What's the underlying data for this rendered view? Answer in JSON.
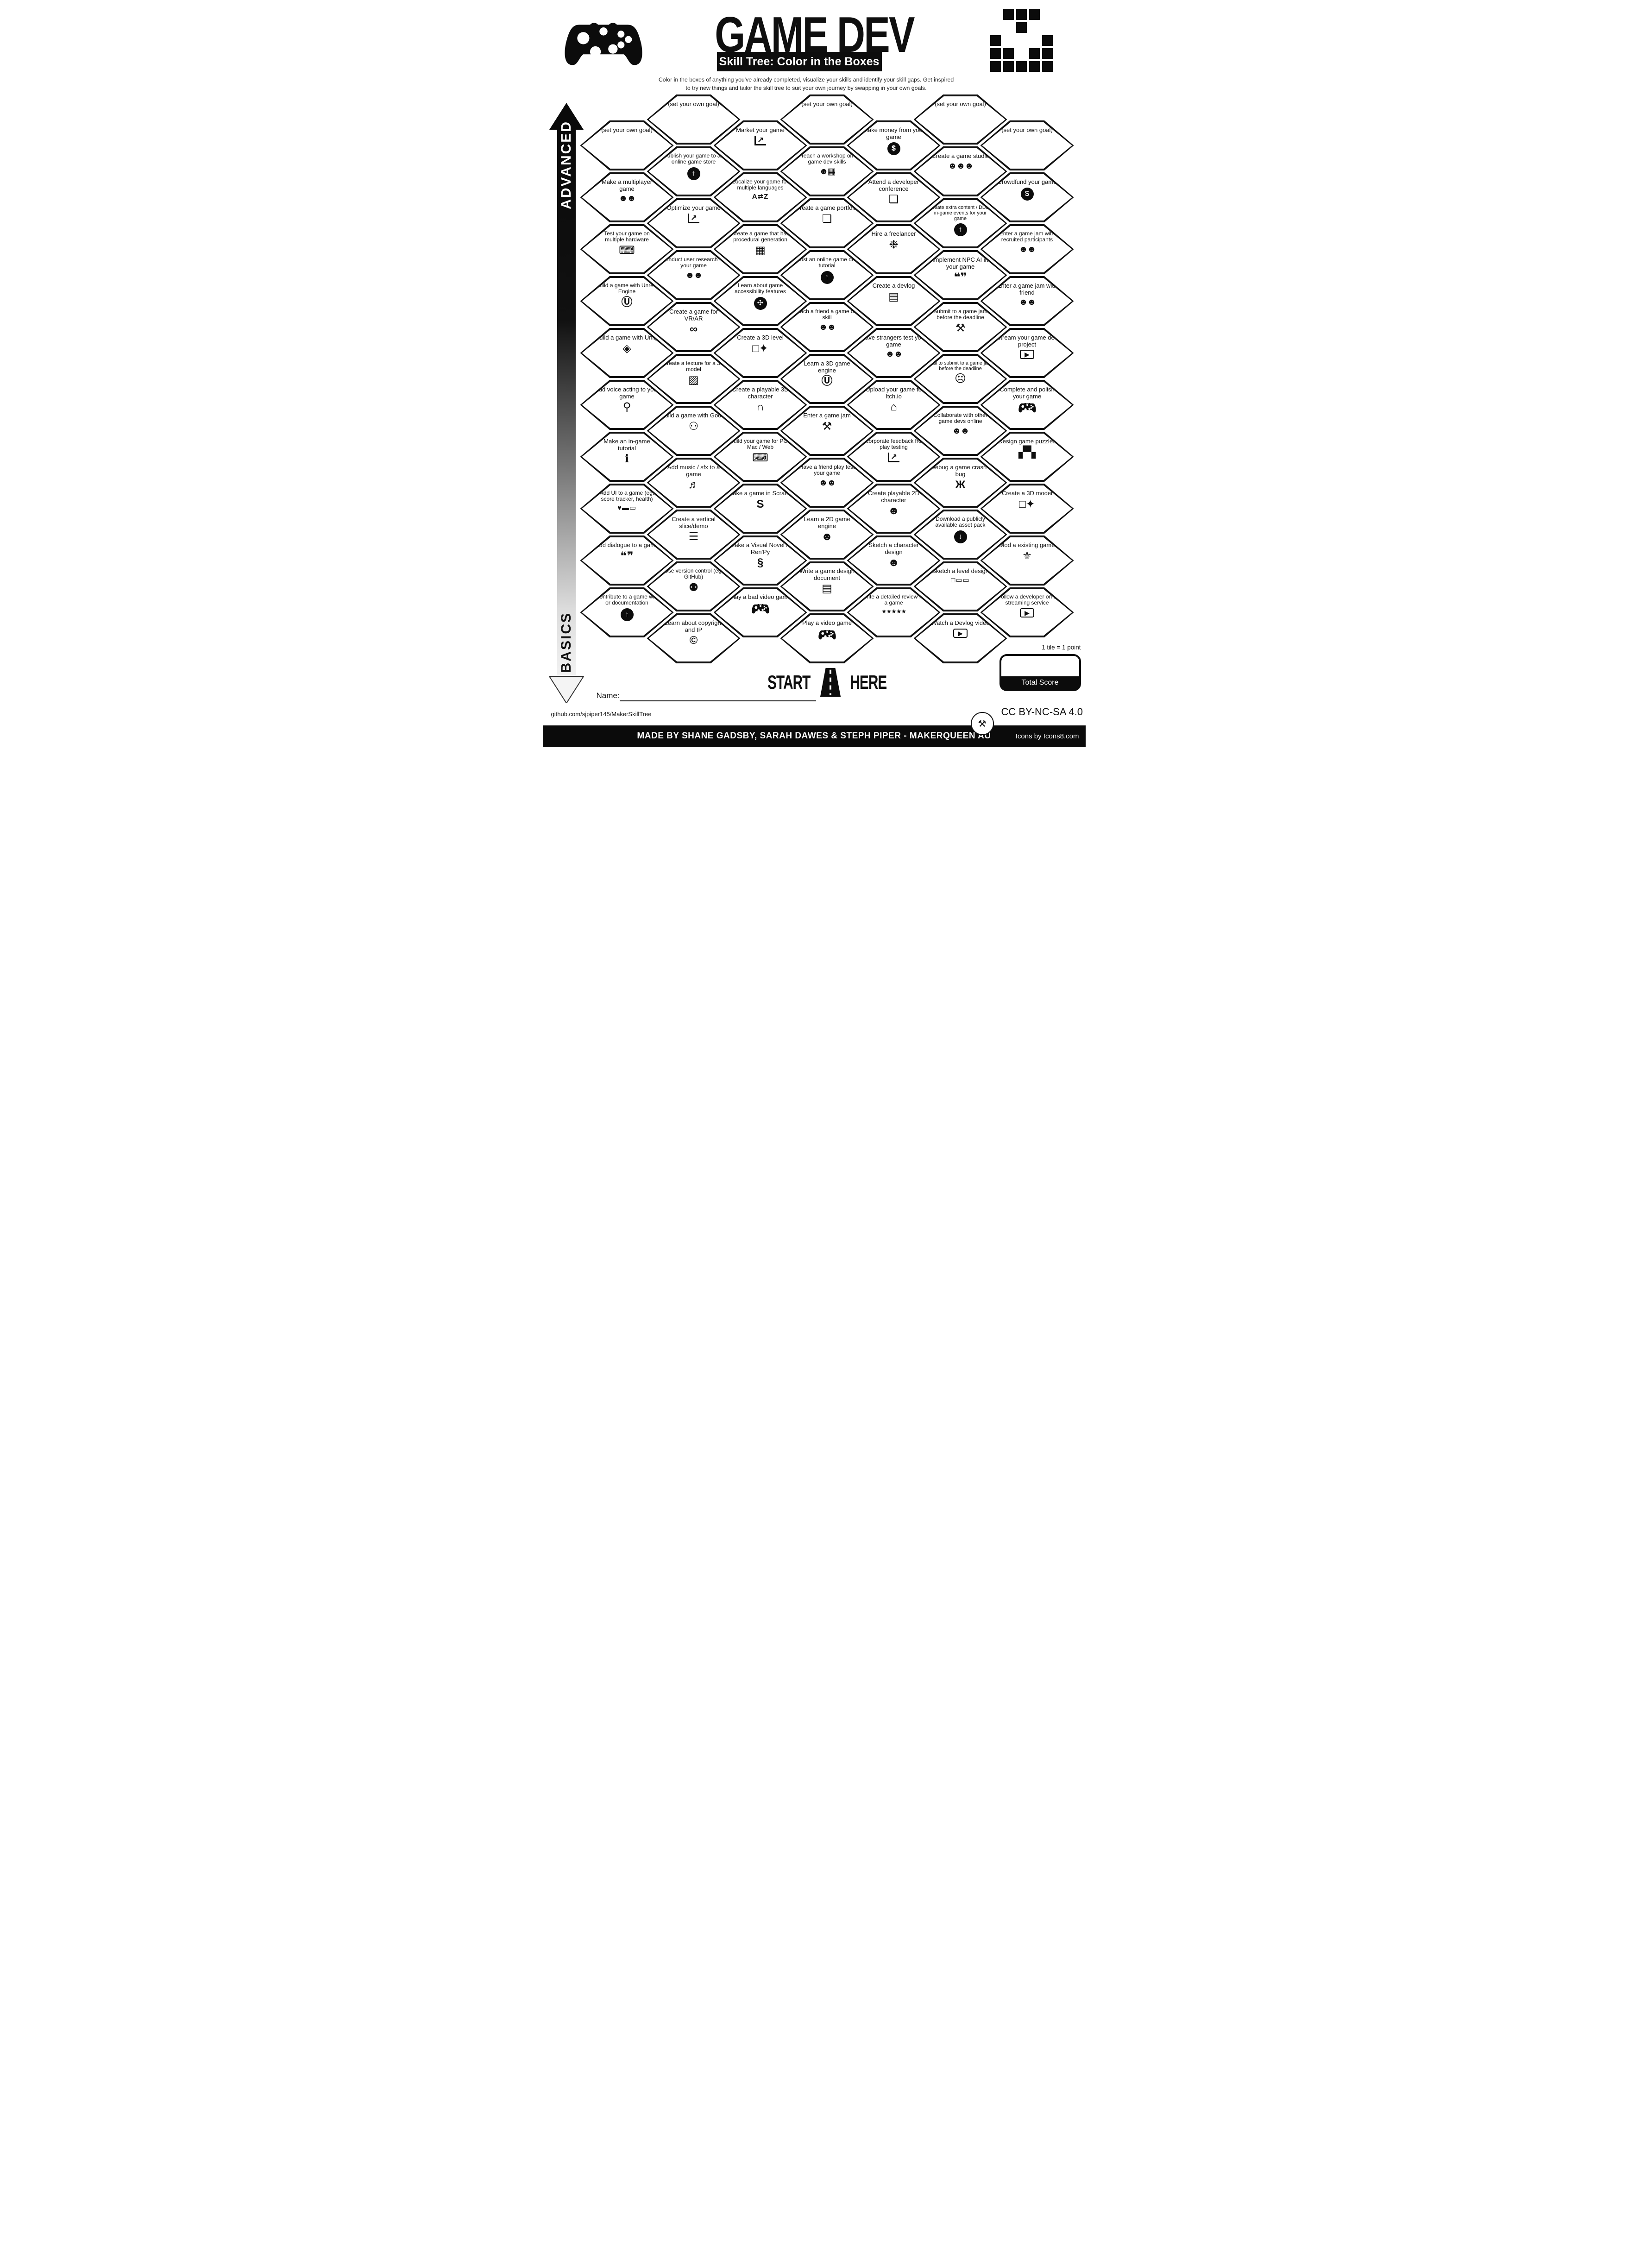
{
  "header": {
    "title": "GAME DEV",
    "subtitle": "Skill Tree: Color in the Boxes",
    "description_line1": "Color in the boxes of anything you've already completed, visualize your skills and identify your skill gaps.  Get inspired",
    "description_line2": "to try new things and tailor the skill tree to suit your own journey by swapping in your own goals."
  },
  "axis": {
    "top_label": "ADVANCED",
    "bottom_label": "BASICS"
  },
  "start_marker": {
    "start": "START",
    "here": "HERE"
  },
  "scoring": {
    "tile_note": "1 tile = 1 point",
    "total_label": "Total Score"
  },
  "footer": {
    "name_label": "Name:",
    "github": "github.com/sjpiper145/MakerSkillTree",
    "license": "CC BY-NC-SA 4.0",
    "credit": "MADE BY SHANE GADSBY, SARAH DAWES & STEPH PIPER  -  MAKERQUEEN AU",
    "icons_credit": "Icons by Icons8.com"
  },
  "icons": {
    "pixel-logo": {
      "rows": [
        "01110",
        "00100",
        "10001",
        "11011",
        "11111"
      ]
    },
    "arrow-up-circle-icon": {
      "glyph": "↑",
      "style": "circle"
    },
    "arrow-down-circle-icon": {
      "glyph": "↓",
      "style": "circle"
    },
    "money-bag-icon": {
      "glyph": "$",
      "style": "circle"
    },
    "accessibility-icon": {
      "glyph": "✣",
      "style": "circle"
    },
    "chart-icon": {
      "glyph": "↗",
      "style": "chart"
    },
    "people-laptop-icon": {
      "glyph": "☻☻",
      "style": "people"
    },
    "three-people-icon": {
      "glyph": "☻☻☻",
      "style": "people"
    },
    "person-teaching-icon": {
      "glyph": "☻▦",
      "style": "people"
    },
    "pixel-face-icon": {
      "glyph": "☻",
      "style": "plain"
    },
    "facepalm-icon": {
      "glyph": "☹",
      "style": "plain"
    },
    "computer-icon": {
      "glyph": "⌨",
      "style": "plain"
    },
    "unreal-engine-icon": {
      "glyph": "Ⓤ",
      "style": "plain"
    },
    "unity-icon": {
      "glyph": "◈",
      "style": "plain"
    },
    "godot-icon": {
      "glyph": "⚇",
      "style": "plain"
    },
    "vr-headset-icon": {
      "glyph": "∞",
      "style": "plain"
    },
    "microphone-icon": {
      "glyph": "⚲",
      "style": "plain"
    },
    "info-icon": {
      "glyph": "ℹ",
      "style": "plain"
    },
    "health-bar-icon": {
      "glyph": "♥▬▭",
      "style": "plain-small"
    },
    "speech-bubbles-icon": {
      "glyph": "❝❞",
      "style": "plain"
    },
    "document-icon": {
      "glyph": "▤",
      "style": "plain"
    },
    "badge-icon": {
      "glyph": "❏",
      "style": "plain"
    },
    "palette-icon": {
      "glyph": "❉",
      "style": "plain"
    },
    "texture-icon": {
      "glyph": "▨",
      "style": "plain"
    },
    "music-icon": {
      "glyph": "♬",
      "style": "plain"
    },
    "layers-icon": {
      "glyph": "☰",
      "style": "plain"
    },
    "github-icon": {
      "glyph": "⚉",
      "style": "plain"
    },
    "copyright-icon": {
      "glyph": "©",
      "style": "plain"
    },
    "translate-icon": {
      "glyph": "A⇄Z",
      "style": "plain-small"
    },
    "pixel-map-icon": {
      "glyph": "▦",
      "style": "plain"
    },
    "cube-sparkle-icon": {
      "glyph": "□✦",
      "style": "plain"
    },
    "helmet-icon": {
      "glyph": "∩",
      "style": "plain"
    },
    "scratch-icon": {
      "glyph": "S",
      "style": "plain"
    },
    "python-icon": {
      "glyph": "§",
      "style": "plain"
    },
    "tools-icon": {
      "glyph": "⚒",
      "style": "plain"
    },
    "storefront-icon": {
      "glyph": "⌂",
      "style": "plain"
    },
    "stars-icon": {
      "glyph": "★★★★★",
      "style": "stars"
    },
    "bug-icon": {
      "glyph": "Ж",
      "style": "plain"
    },
    "level-sketch-icon": {
      "glyph": "□▭▭",
      "style": "plain-small"
    },
    "video-icon": {
      "glyph": "▶",
      "style": "frame"
    },
    "pixel-blocks-icon": {
      "glyph": "▞▚",
      "style": "plain"
    },
    "dragon-icon": {
      "glyph": "⚜",
      "style": "plain"
    },
    "controller-icon": {
      "svg": "controller"
    },
    "controller-sparkles-icon": {
      "svg": "controller"
    }
  },
  "grid": {
    "columns": [
      {
        "id": "col-1",
        "hexes": [
          {
            "label": "(set your own goal)",
            "icon": null
          },
          {
            "label": "Make a multiplayer game",
            "icon": "people-laptop-icon"
          },
          {
            "label": "Test your game on multiple hardware",
            "icon": "computer-icon"
          },
          {
            "label": "Build a game with Unreal Engine",
            "icon": "unreal-engine-icon"
          },
          {
            "label": "Build a game with Unity",
            "icon": "unity-icon"
          },
          {
            "label": "Add voice acting to your game",
            "icon": "microphone-icon"
          },
          {
            "label": "Make an in-game tutorial",
            "icon": "info-icon"
          },
          {
            "label": "Add UI to a game (eg. score tracker, health)",
            "icon": "health-bar-icon"
          },
          {
            "label": "Add dialogue to a game",
            "icon": "speech-bubbles-icon"
          },
          {
            "label": "Contribute to a game wiki or documentation",
            "icon": "arrow-up-circle-icon"
          }
        ]
      },
      {
        "id": "col-2",
        "hexes": [
          {
            "label": "(set your own goal)",
            "icon": null
          },
          {
            "label": "Publish your game to an online game store",
            "icon": "arrow-up-circle-icon"
          },
          {
            "label": "Optimize your game",
            "icon": "chart-icon"
          },
          {
            "label": "Conduct user research for your game",
            "icon": "people-laptop-icon"
          },
          {
            "label": "Create a game for VR/AR",
            "icon": "vr-headset-icon"
          },
          {
            "label": "Create a texture for a 3D model",
            "icon": "texture-icon"
          },
          {
            "label": "Build a game with Godot",
            "icon": "godot-icon"
          },
          {
            "label": "Add music / sfx to a game",
            "icon": "music-icon"
          },
          {
            "label": "Create a vertical slice/demo",
            "icon": "layers-icon"
          },
          {
            "label": "Use version control (eg. GitHub)",
            "icon": "github-icon"
          },
          {
            "label": "Learn about copyright and IP",
            "icon": "copyright-icon"
          }
        ]
      },
      {
        "id": "col-3",
        "hexes": [
          {
            "label": "Market your game",
            "icon": "chart-icon"
          },
          {
            "label": "Localize your game for multiple languages",
            "icon": "translate-icon"
          },
          {
            "label": "Create a game that has procedural generation",
            "icon": "pixel-map-icon"
          },
          {
            "label": "Learn about game accessibility features",
            "icon": "accessibility-icon"
          },
          {
            "label": "Create a 3D level",
            "icon": "cube-sparkle-icon"
          },
          {
            "label": "Create a playable 3D character",
            "icon": "helmet-icon"
          },
          {
            "label": "Build your game for PC / Mac / Web",
            "icon": "computer-icon"
          },
          {
            "label": "Make a game in Scratch",
            "icon": "scratch-icon"
          },
          {
            "label": "Make a Visual Novel in Ren'Py",
            "icon": "python-icon"
          },
          {
            "label": "Play a bad video game",
            "icon": "controller-icon"
          }
        ]
      },
      {
        "id": "col-4",
        "hexes": [
          {
            "label": "(set your own goal)",
            "icon": null
          },
          {
            "label": "Teach a workshop on game dev skills",
            "icon": "person-teaching-icon"
          },
          {
            "label": "Create a game portfolio",
            "icon": "badge-icon"
          },
          {
            "label": "Post an online game dev tutorial",
            "icon": "arrow-up-circle-icon"
          },
          {
            "label": "Teach a friend a game dev skill",
            "icon": "people-laptop-icon"
          },
          {
            "label": "Learn a 3D game engine",
            "icon": "unreal-engine-icon"
          },
          {
            "label": "Enter a game jam",
            "icon": "tools-icon"
          },
          {
            "label": "Have a friend play test your game",
            "icon": "people-laptop-icon"
          },
          {
            "label": "Learn a 2D game engine",
            "icon": "pixel-face-icon"
          },
          {
            "label": "Write a game design document",
            "icon": "document-icon"
          },
          {
            "label": "Play a video game",
            "icon": "controller-icon"
          }
        ]
      },
      {
        "id": "col-5",
        "hexes": [
          {
            "label": "Make money from your game",
            "icon": "money-bag-icon"
          },
          {
            "label": "Attend a developer conference",
            "icon": "badge-icon"
          },
          {
            "label": "Hire a freelancer",
            "icon": "palette-icon"
          },
          {
            "label": "Create a devlog",
            "icon": "document-icon"
          },
          {
            "label": "Have strangers test your game",
            "icon": "people-laptop-icon"
          },
          {
            "label": "Upload your game to Itch.io",
            "icon": "storefront-icon"
          },
          {
            "label": "Incorporate feedback from play testing",
            "icon": "chart-icon"
          },
          {
            "label": "Create playable 2D character",
            "icon": "pixel-face-icon"
          },
          {
            "label": "Sketch a character design",
            "icon": "pixel-face-icon"
          },
          {
            "label": "Write a detailed review for a game",
            "icon": "stars-icon"
          }
        ]
      },
      {
        "id": "col-6",
        "hexes": [
          {
            "label": "(set your own goal)",
            "icon": null
          },
          {
            "label": "Create a game studio",
            "icon": "three-people-icon"
          },
          {
            "label": "Create extra content / DLC / in-game events for your game",
            "icon": "arrow-up-circle-icon"
          },
          {
            "label": "Implement NPC AI in your game",
            "icon": "speech-bubbles-icon"
          },
          {
            "label": "Submit to a game jam before the deadline",
            "icon": "tools-icon"
          },
          {
            "label": "Fail to submit to a game jam before the deadline",
            "icon": "facepalm-icon"
          },
          {
            "label": "Collaborate with other game devs online",
            "icon": "people-laptop-icon"
          },
          {
            "label": "Debug a game crash / bug",
            "icon": "bug-icon"
          },
          {
            "label": "Download a publicly available asset pack",
            "icon": "arrow-down-circle-icon"
          },
          {
            "label": "Sketch a level design",
            "icon": "level-sketch-icon"
          },
          {
            "label": "Watch a Devlog video",
            "icon": "video-icon"
          }
        ]
      },
      {
        "id": "col-7",
        "hexes": [
          {
            "label": "(set your own goal)",
            "icon": null
          },
          {
            "label": "Crowdfund your game",
            "icon": "money-bag-icon"
          },
          {
            "label": "Enter a game jam with recruited participants",
            "icon": "people-laptop-icon"
          },
          {
            "label": "Enter a game jam with friend",
            "icon": "people-laptop-icon"
          },
          {
            "label": "Stream your game dev project",
            "icon": "video-icon"
          },
          {
            "label": "Complete and polish your game",
            "icon": "controller-sparkles-icon"
          },
          {
            "label": "Design game puzzles",
            "icon": "pixel-blocks-icon"
          },
          {
            "label": "Create a 3D model",
            "icon": "cube-sparkle-icon"
          },
          {
            "label": "Mod a existing game",
            "icon": "dragon-icon"
          },
          {
            "label": "Follow a developer on a streaming service",
            "icon": "video-icon"
          }
        ]
      }
    ]
  }
}
